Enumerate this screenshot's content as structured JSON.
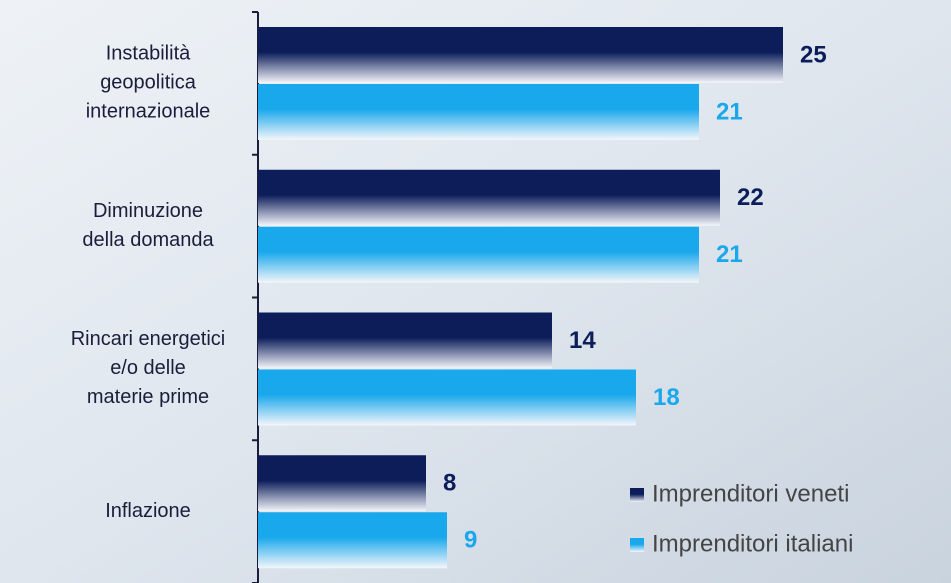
{
  "chart_data": {
    "type": "hbar",
    "categories": [
      [
        "Instabilità",
        "geopolitica",
        "internazionale"
      ],
      [
        "Diminuzione",
        "della domanda"
      ],
      [
        "Rincari energetici",
        "e/o delle",
        "materie prime"
      ],
      [
        "Inflazione"
      ]
    ],
    "series": [
      {
        "name": "Imprenditori veneti",
        "color": "#0c1d5a",
        "values": [
          25,
          22,
          14,
          8
        ]
      },
      {
        "name": "Imprenditori italiani",
        "color": "#1aa8ec",
        "values": [
          21,
          21,
          18,
          9
        ]
      }
    ],
    "xlim": [
      0,
      33
    ],
    "legend": "lower right"
  }
}
